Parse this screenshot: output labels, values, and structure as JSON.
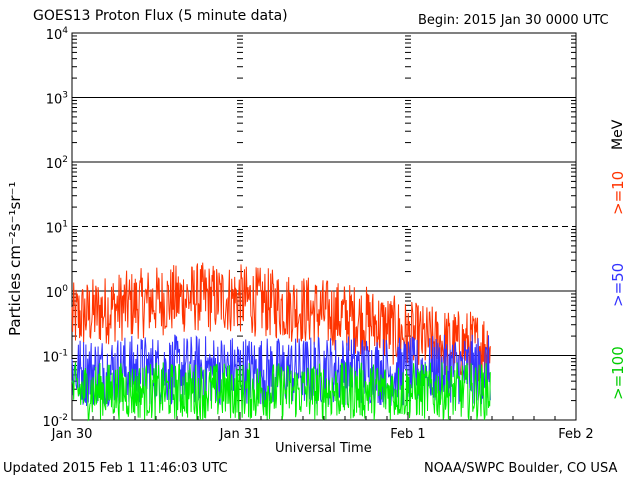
{
  "header": {
    "title": "GOES13 Proton Flux (5 minute data)",
    "begin": "Begin: 2015 Jan 30 0000 UTC"
  },
  "footer": {
    "updated": "Updated 2015 Feb  1 11:46:03 UTC",
    "credit": "NOAA/SWPC Boulder, CO USA"
  },
  "legend": {
    "unit": "MeV",
    "items": [
      {
        "label": ">=10",
        "color": "#ff3300"
      },
      {
        "label": ">=50",
        "color": "#3333ff"
      },
      {
        "label": ">=100",
        "color": "#00ee00"
      }
    ]
  },
  "chart_data": {
    "type": "line",
    "title": "GOES13 Proton Flux (5 minute data)",
    "xlabel": "Universal Time",
    "ylabel": "Particles cm⁻²s⁻¹sr⁻¹",
    "y_scale": "log",
    "ylim": [
      0.01,
      10000
    ],
    "y_ticks": [
      {
        "base": "10",
        "exp": "-2"
      },
      {
        "base": "10",
        "exp": "-1"
      },
      {
        "base": "10",
        "exp": "0"
      },
      {
        "base": "10",
        "exp": "1"
      },
      {
        "base": "10",
        "exp": "2"
      },
      {
        "base": "10",
        "exp": "3"
      },
      {
        "base": "10",
        "exp": "4"
      }
    ],
    "x_ticks": [
      "Jan 30",
      "Jan 31",
      "Feb 1",
      "Feb 2"
    ],
    "xlim": [
      "2015-01-30T00:00",
      "2015-02-02T00:00"
    ],
    "reference_line": 10,
    "series": [
      {
        "name": ">=10",
        "color": "#ff3300",
        "x": [
          "2015-01-30T00:00",
          "2015-01-30T06:00",
          "2015-01-30T12:00",
          "2015-01-30T18:00",
          "2015-01-31T00:00",
          "2015-01-31T06:00",
          "2015-01-31T12:00",
          "2015-01-31T18:00",
          "2015-02-01T00:00",
          "2015-02-01T06:00",
          "2015-02-01T11:45"
        ],
        "values": [
          0.38,
          0.55,
          0.7,
          0.8,
          0.75,
          0.6,
          0.45,
          0.35,
          0.2,
          0.15,
          0.14
        ]
      },
      {
        "name": ">=50",
        "color": "#3333ff",
        "x": [
          "2015-01-30T00:00",
          "2015-01-30T06:00",
          "2015-01-30T12:00",
          "2015-01-30T18:00",
          "2015-01-31T00:00",
          "2015-01-31T06:00",
          "2015-01-31T12:00",
          "2015-01-31T18:00",
          "2015-02-01T00:00",
          "2015-02-01T06:00",
          "2015-02-01T11:45"
        ],
        "values": [
          0.055,
          0.06,
          0.06,
          0.06,
          0.06,
          0.055,
          0.06,
          0.06,
          0.055,
          0.06,
          0.06
        ]
      },
      {
        "name": ">=100",
        "color": "#00ee00",
        "x": [
          "2015-01-30T00:00",
          "2015-01-30T06:00",
          "2015-01-30T12:00",
          "2015-01-30T18:00",
          "2015-01-31T00:00",
          "2015-01-31T06:00",
          "2015-01-31T12:00",
          "2015-01-31T18:00",
          "2015-02-01T00:00",
          "2015-02-01T06:00",
          "2015-02-01T11:45"
        ],
        "values": [
          0.028,
          0.028,
          0.028,
          0.028,
          0.028,
          0.028,
          0.028,
          0.028,
          0.028,
          0.028,
          0.028
        ]
      }
    ]
  }
}
